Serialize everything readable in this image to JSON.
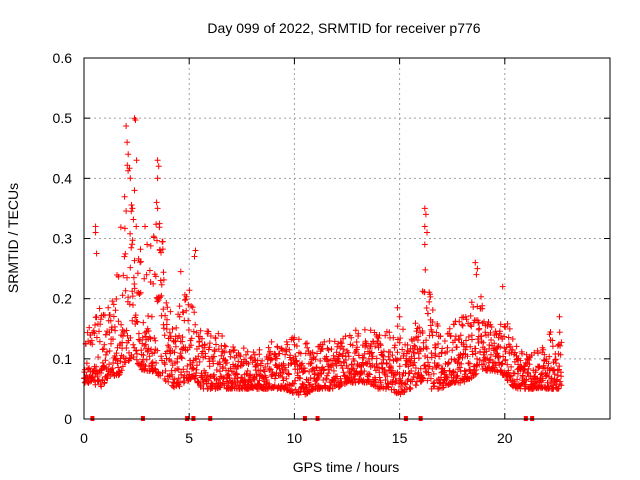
{
  "chart_data": {
    "type": "scatter",
    "title": "Day 099 of 2022, SRMTID for receiver p776",
    "xlabel": "GPS time / hours",
    "ylabel": "SRMTID / TECUs",
    "xlim": [
      0,
      25
    ],
    "ylim": [
      0,
      0.6
    ],
    "xticks": [
      0,
      5,
      10,
      15,
      20
    ],
    "xtick_labels": [
      "0",
      "5",
      "10",
      "15",
      "20"
    ],
    "yticks": [
      0,
      0.1,
      0.2,
      0.3,
      0.4,
      0.5,
      0.6
    ],
    "ytick_labels": [
      "0",
      "0.1",
      "0.2",
      "0.3",
      "0.4",
      "0.5",
      "0.6"
    ],
    "grid": true,
    "marker": "+",
    "color": "#ff0000",
    "zero_markers_x": [
      0.4,
      2.8,
      4.9,
      5.2,
      6.0,
      10.5,
      11.1,
      15.3,
      16.0,
      21.0,
      21.3
    ],
    "envelope": {
      "x": [
        0.0,
        0.4,
        0.8,
        1.2,
        1.6,
        2.0,
        2.2,
        2.4,
        2.8,
        3.2,
        3.6,
        4.0,
        4.4,
        4.8,
        5.2,
        5.6,
        6.0,
        6.5,
        7.0,
        7.5,
        8.0,
        8.5,
        9.0,
        9.5,
        10.0,
        10.5,
        11.0,
        11.5,
        12.0,
        12.5,
        13.0,
        13.5,
        14.0,
        14.5,
        15.0,
        15.5,
        16.0,
        16.2,
        16.5,
        17.0,
        17.5,
        18.0,
        18.5,
        18.8,
        19.0,
        19.5,
        20.0,
        20.5,
        21.0,
        21.5,
        22.0,
        22.5,
        22.7
      ],
      "low": [
        0.06,
        0.06,
        0.05,
        0.07,
        0.07,
        0.09,
        0.1,
        0.1,
        0.08,
        0.08,
        0.07,
        0.06,
        0.05,
        0.06,
        0.07,
        0.05,
        0.05,
        0.05,
        0.05,
        0.05,
        0.05,
        0.05,
        0.05,
        0.05,
        0.04,
        0.04,
        0.05,
        0.05,
        0.05,
        0.06,
        0.06,
        0.06,
        0.05,
        0.05,
        0.04,
        0.05,
        0.06,
        0.07,
        0.05,
        0.05,
        0.06,
        0.06,
        0.07,
        0.08,
        0.08,
        0.08,
        0.07,
        0.05,
        0.05,
        0.05,
        0.05,
        0.05,
        0.05
      ],
      "high": [
        0.12,
        0.18,
        0.21,
        0.19,
        0.26,
        0.42,
        0.47,
        0.4,
        0.24,
        0.3,
        0.36,
        0.19,
        0.18,
        0.21,
        0.22,
        0.14,
        0.15,
        0.14,
        0.13,
        0.12,
        0.11,
        0.12,
        0.13,
        0.13,
        0.14,
        0.13,
        0.12,
        0.13,
        0.13,
        0.14,
        0.15,
        0.15,
        0.14,
        0.15,
        0.16,
        0.13,
        0.19,
        0.28,
        0.2,
        0.14,
        0.16,
        0.17,
        0.2,
        0.23,
        0.17,
        0.16,
        0.17,
        0.13,
        0.11,
        0.11,
        0.14,
        0.16,
        0.15
      ]
    },
    "highlight_points": [
      {
        "x": 0.55,
        "y": 0.32
      },
      {
        "x": 0.55,
        "y": 0.31
      },
      {
        "x": 0.6,
        "y": 0.275
      },
      {
        "x": 2.0,
        "y": 0.487
      },
      {
        "x": 2.05,
        "y": 0.46
      },
      {
        "x": 2.1,
        "y": 0.44
      },
      {
        "x": 2.4,
        "y": 0.5
      },
      {
        "x": 2.45,
        "y": 0.497
      },
      {
        "x": 2.5,
        "y": 0.43
      },
      {
        "x": 2.2,
        "y": 0.4
      },
      {
        "x": 2.4,
        "y": 0.38
      },
      {
        "x": 2.3,
        "y": 0.35
      },
      {
        "x": 3.5,
        "y": 0.43
      },
      {
        "x": 3.55,
        "y": 0.42
      },
      {
        "x": 3.5,
        "y": 0.4
      },
      {
        "x": 3.45,
        "y": 0.36
      },
      {
        "x": 3.5,
        "y": 0.35
      },
      {
        "x": 2.9,
        "y": 0.32
      },
      {
        "x": 3.0,
        "y": 0.29
      },
      {
        "x": 5.3,
        "y": 0.28
      },
      {
        "x": 5.25,
        "y": 0.27
      },
      {
        "x": 4.6,
        "y": 0.245
      },
      {
        "x": 16.2,
        "y": 0.35
      },
      {
        "x": 16.25,
        "y": 0.34
      },
      {
        "x": 16.2,
        "y": 0.32
      },
      {
        "x": 16.3,
        "y": 0.31
      },
      {
        "x": 16.2,
        "y": 0.29
      },
      {
        "x": 18.6,
        "y": 0.26
      },
      {
        "x": 18.7,
        "y": 0.25
      },
      {
        "x": 18.65,
        "y": 0.24
      },
      {
        "x": 14.9,
        "y": 0.185
      },
      {
        "x": 15.0,
        "y": 0.17
      },
      {
        "x": 19.9,
        "y": 0.22
      },
      {
        "x": 22.6,
        "y": 0.17
      }
    ]
  }
}
